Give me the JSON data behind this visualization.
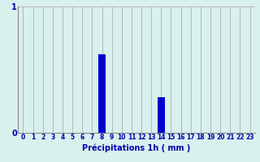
{
  "hours": [
    0,
    1,
    2,
    3,
    4,
    5,
    6,
    7,
    8,
    9,
    10,
    11,
    12,
    13,
    14,
    15,
    16,
    17,
    18,
    19,
    20,
    21,
    22,
    23
  ],
  "values": [
    0,
    0,
    0,
    0,
    0,
    0,
    0,
    0,
    0.62,
    0,
    0,
    0,
    0,
    0,
    0.28,
    0,
    0,
    0,
    0,
    0,
    0,
    0,
    0,
    0
  ],
  "bar_color": "#0000cc",
  "bg_color": "#d8f0ee",
  "grid_color": "#b0b0b0",
  "axis_color": "#0000aa",
  "xlabel": "Précipitations 1h ( mm )",
  "xlabel_fontsize": 7,
  "tick_fontsize": 5.5,
  "ylim": [
    0,
    1.0
  ],
  "xlim": [
    -0.5,
    23.5
  ],
  "yticks": [
    0,
    1
  ],
  "xtick_labels": [
    "0",
    "1",
    "2",
    "3",
    "4",
    "5",
    "6",
    "7",
    "8",
    "9",
    "10",
    "11",
    "12",
    "13",
    "14",
    "15",
    "16",
    "17",
    "18",
    "19",
    "20",
    "21",
    "22",
    "23"
  ]
}
